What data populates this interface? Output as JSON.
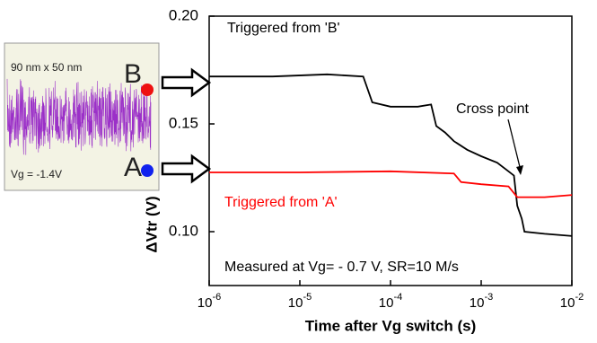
{
  "chart_data": {
    "type": "line",
    "y_label": "ΔVtr (V)",
    "x_label": "Time after Vg switch (s)",
    "xscale": "log",
    "xlim": [
      1e-06,
      0.01
    ],
    "ylim": [
      0.075,
      0.2
    ],
    "xticks": [
      {
        "value": 1e-06,
        "label": "10-6"
      },
      {
        "value": 1e-05,
        "label": "10-5"
      },
      {
        "value": 0.0001,
        "label": "10-4"
      },
      {
        "value": 0.001,
        "label": "10-3"
      },
      {
        "value": 0.01,
        "label": "10-2"
      }
    ],
    "yticks": [
      {
        "value": 0.2,
        "label": "0.20"
      },
      0.15,
      {
        "value": 0.1,
        "label": "0.10"
      }
    ],
    "series": [
      {
        "name": "Triggered from 'B'",
        "color": "#000000",
        "x": [
          1e-06,
          5e-06,
          2e-05,
          5e-05,
          6.3e-05,
          0.0001,
          0.0002,
          0.00028,
          0.00032,
          0.0004,
          0.0005,
          0.0007,
          0.001,
          0.0015,
          0.002,
          0.0023,
          0.0025,
          0.0028,
          0.003,
          0.005,
          0.01
        ],
        "values": [
          0.172,
          0.172,
          0.173,
          0.172,
          0.16,
          0.158,
          0.158,
          0.159,
          0.149,
          0.146,
          0.142,
          0.138,
          0.135,
          0.132,
          0.128,
          0.126,
          0.112,
          0.106,
          0.1,
          0.099,
          0.098
        ]
      },
      {
        "name": "Triggered from 'A'",
        "color": "#ff0000",
        "x": [
          1e-06,
          1e-05,
          0.0001,
          0.0005,
          0.0006,
          0.001,
          0.002,
          0.0025,
          0.005,
          0.01
        ],
        "values": [
          0.1275,
          0.1275,
          0.128,
          0.127,
          0.123,
          0.122,
          0.121,
          0.116,
          0.116,
          0.117
        ]
      }
    ],
    "annotations": [
      "Cross point",
      "Measured at Vg= - 0.7 V, SR=10 M/s"
    ]
  },
  "inset": {
    "size": "90 nm x 50 nm",
    "top_label": "B",
    "bottom_label": "A",
    "bias": "Vg = -1.4V"
  }
}
